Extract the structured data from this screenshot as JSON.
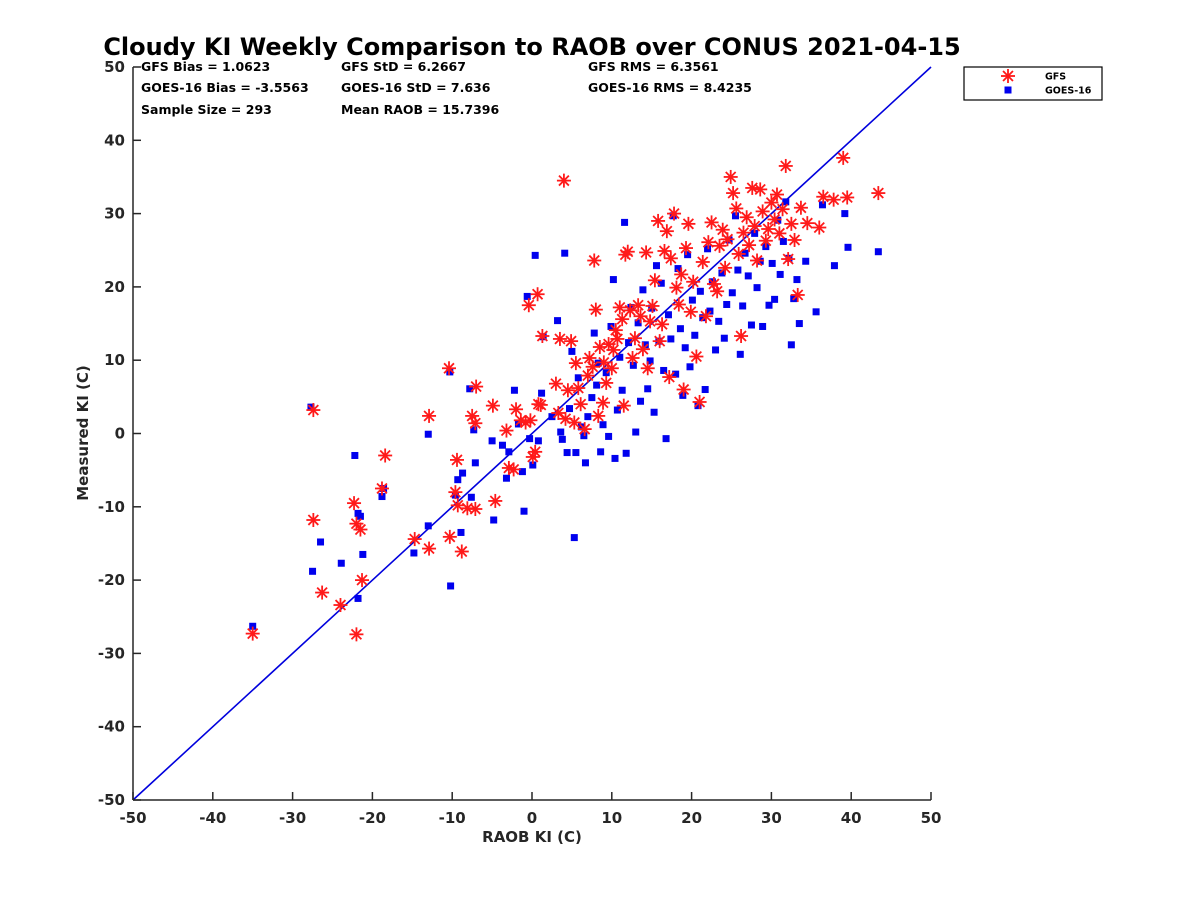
{
  "chart_data": {
    "type": "scatter",
    "title": "Cloudy KI Weekly Comparison to RAOB over CONUS 2021-04-15",
    "xlabel": "RAOB KI (C)",
    "ylabel": "Measured KI (C)",
    "xlim": [
      -50,
      50
    ],
    "ylim": [
      -50,
      50
    ],
    "xticks": [
      -50,
      -40,
      -30,
      -20,
      -10,
      0,
      10,
      20,
      30,
      40,
      50
    ],
    "yticks": [
      -50,
      -40,
      -30,
      -20,
      -10,
      0,
      10,
      20,
      30,
      40,
      50
    ],
    "grid": false,
    "legend_position": "outside-top-right",
    "reference_line": {
      "from": [
        -50,
        -50
      ],
      "to": [
        50,
        50
      ],
      "color": "#0000dd"
    },
    "stats": [
      {
        "key": "gfs-bias",
        "text": "GFS Bias = 1.0623"
      },
      {
        "key": "gfs-std",
        "text": "GFS StD = 6.2667"
      },
      {
        "key": "gfs-rms",
        "text": "GFS RMS = 6.3561"
      },
      {
        "key": "goes-bias",
        "text": "GOES-16 Bias = -3.5563"
      },
      {
        "key": "goes-std",
        "text": "GOES-16 StD = 7.636"
      },
      {
        "key": "goes-rms",
        "text": "GOES-16 RMS = 8.4235"
      },
      {
        "key": "sample-size",
        "text": "Sample Size = 293"
      },
      {
        "key": "mean-raob",
        "text": "Mean RAOB = 15.7396"
      }
    ],
    "series": [
      {
        "name": "GFS",
        "marker": "asterisk",
        "color": "#ff1a1a",
        "points": [
          [
            -35,
            -27.3
          ],
          [
            -27.4,
            3.2
          ],
          [
            -27.4,
            -11.8
          ],
          [
            -26.3,
            -21.7
          ],
          [
            -24,
            -23.4
          ],
          [
            -22,
            -27.4
          ],
          [
            -22.3,
            -9.5
          ],
          [
            -22,
            -12.3
          ],
          [
            -21.5,
            -13.1
          ],
          [
            -21.3,
            -20
          ],
          [
            -18.8,
            -7.5
          ],
          [
            -18.4,
            -3
          ],
          [
            -14.7,
            -14.4
          ],
          [
            -12.9,
            -15.7
          ],
          [
            -12.9,
            2.4
          ],
          [
            -10.4,
            8.9
          ],
          [
            -10.3,
            -14.1
          ],
          [
            -9.6,
            -8
          ],
          [
            -9.4,
            -3.6
          ],
          [
            -9.3,
            -9.8
          ],
          [
            -8.8,
            -16.1
          ],
          [
            -8.1,
            -10.2
          ],
          [
            -7.5,
            2.4
          ],
          [
            -7.1,
            -10.3
          ],
          [
            -7.1,
            1.4
          ],
          [
            -7,
            6.4
          ],
          [
            -4.9,
            3.8
          ],
          [
            -4.6,
            -9.2
          ],
          [
            -3.2,
            0.4
          ],
          [
            -2.9,
            -4.7
          ],
          [
            -2.3,
            -4.9
          ],
          [
            -2,
            3.3
          ],
          [
            -1.4,
            1.8
          ],
          [
            -0.8,
            1.5
          ],
          [
            -0.4,
            17.5
          ],
          [
            -0.2,
            1.8
          ],
          [
            0.1,
            -3.2
          ],
          [
            0.4,
            -2.5
          ],
          [
            0.7,
            19
          ],
          [
            0.8,
            4
          ],
          [
            1.1,
            3.9
          ],
          [
            1.3,
            13.3
          ],
          [
            3,
            6.8
          ],
          [
            3.3,
            2.8
          ],
          [
            3.5,
            12.9
          ],
          [
            4,
            34.5
          ],
          [
            4.2,
            2
          ],
          [
            4.5,
            5.9
          ],
          [
            4.9,
            12.6
          ],
          [
            5.3,
            1.5
          ],
          [
            5.5,
            9.6
          ],
          [
            5.8,
            6.2
          ],
          [
            6.1,
            4
          ],
          [
            6.6,
            0.6
          ],
          [
            7,
            7.9
          ],
          [
            7.2,
            10.3
          ],
          [
            7.6,
            9.1
          ],
          [
            7.8,
            23.6
          ],
          [
            8,
            16.9
          ],
          [
            8.3,
            2.4
          ],
          [
            8.5,
            11.8
          ],
          [
            8.9,
            4.2
          ],
          [
            9,
            9.7
          ],
          [
            9.3,
            6.9
          ],
          [
            9.6,
            12.2
          ],
          [
            10,
            8.9
          ],
          [
            10.2,
            11.4
          ],
          [
            10.5,
            14.1
          ],
          [
            10.7,
            12.9
          ],
          [
            11,
            17.2
          ],
          [
            11.3,
            15.6
          ],
          [
            11.5,
            3.8
          ],
          [
            11.7,
            24.4
          ],
          [
            12,
            24.8
          ],
          [
            12.3,
            16.8
          ],
          [
            12.6,
            10.3
          ],
          [
            12.9,
            13
          ],
          [
            13.3,
            17.5
          ],
          [
            13.6,
            16
          ],
          [
            13.9,
            11.5
          ],
          [
            14.3,
            24.7
          ],
          [
            14.5,
            8.9
          ],
          [
            14.8,
            15.3
          ],
          [
            15.1,
            17.4
          ],
          [
            15.4,
            20.9
          ],
          [
            15.8,
            29
          ],
          [
            16,
            12.6
          ],
          [
            16.3,
            14.9
          ],
          [
            16.6,
            24.9
          ],
          [
            16.9,
            27.6
          ],
          [
            17.2,
            7.7
          ],
          [
            17.4,
            23.9
          ],
          [
            17.8,
            30
          ],
          [
            18.1,
            19.9
          ],
          [
            18.4,
            17.6
          ],
          [
            18.7,
            21.7
          ],
          [
            19,
            6
          ],
          [
            19.3,
            25.3
          ],
          [
            19.6,
            28.6
          ],
          [
            19.9,
            16.6
          ],
          [
            20.2,
            20.7
          ],
          [
            20.6,
            10.5
          ],
          [
            21,
            4.3
          ],
          [
            21.4,
            23.4
          ],
          [
            21.8,
            16
          ],
          [
            22.1,
            26.1
          ],
          [
            22.5,
            28.8
          ],
          [
            22.8,
            20.4
          ],
          [
            23.2,
            19.4
          ],
          [
            23.5,
            25.6
          ],
          [
            23.9,
            27.8
          ],
          [
            24.2,
            22.6
          ],
          [
            24.5,
            26.5
          ],
          [
            24.9,
            35
          ],
          [
            25.2,
            32.8
          ],
          [
            25.6,
            30.7
          ],
          [
            25.9,
            24.5
          ],
          [
            26.2,
            13.3
          ],
          [
            26.5,
            27.4
          ],
          [
            26.9,
            29.5
          ],
          [
            27.2,
            25.7
          ],
          [
            27.6,
            33.5
          ],
          [
            27.9,
            28.3
          ],
          [
            28.2,
            23.6
          ],
          [
            28.6,
            33.3
          ],
          [
            28.9,
            30.3
          ],
          [
            29.3,
            26.3
          ],
          [
            29.6,
            27.9
          ],
          [
            30,
            31.5
          ],
          [
            30.4,
            29.2
          ],
          [
            30.7,
            32.6
          ],
          [
            31,
            27.3
          ],
          [
            31.4,
            30.6
          ],
          [
            31.8,
            36.5
          ],
          [
            32.1,
            23.8
          ],
          [
            32.5,
            28.6
          ],
          [
            32.9,
            26.4
          ],
          [
            33.3,
            18.9
          ],
          [
            33.7,
            30.8
          ],
          [
            34.5,
            28.7
          ],
          [
            36,
            28.1
          ],
          [
            36.5,
            32.3
          ],
          [
            37.8,
            31.9
          ],
          [
            39,
            37.6
          ],
          [
            39.5,
            32.2
          ],
          [
            43.4,
            32.8
          ]
        ]
      },
      {
        "name": "GOES-16",
        "marker": "square",
        "color": "#0000ee",
        "points": [
          [
            -35,
            -26.3
          ],
          [
            -27.7,
            3.6
          ],
          [
            -27.5,
            -18.8
          ],
          [
            -26.5,
            -14.8
          ],
          [
            -23.9,
            -17.7
          ],
          [
            -22.2,
            -3
          ],
          [
            -21.8,
            -22.5
          ],
          [
            -21.8,
            -10.9
          ],
          [
            -21.2,
            -16.5
          ],
          [
            -21.5,
            -11.3
          ],
          [
            -18.8,
            -8.6
          ],
          [
            -18.6,
            -7.5
          ],
          [
            -14.8,
            -16.3
          ],
          [
            -13,
            -12.6
          ],
          [
            -13,
            -0.1
          ],
          [
            -10.3,
            8.4
          ],
          [
            -10.2,
            -20.8
          ],
          [
            -9.6,
            -8.4
          ],
          [
            -9.3,
            -6.3
          ],
          [
            -8.9,
            -13.5
          ],
          [
            -8.7,
            -5.4
          ],
          [
            -7.8,
            6.1
          ],
          [
            -7.6,
            -8.7
          ],
          [
            -7.3,
            0.5
          ],
          [
            -7.1,
            -4
          ],
          [
            -5,
            -1
          ],
          [
            -4.8,
            -11.8
          ],
          [
            -3.7,
            -1.6
          ],
          [
            -3.2,
            -6.1
          ],
          [
            -2.9,
            -2.5
          ],
          [
            -2.2,
            5.9
          ],
          [
            -1.7,
            1.3
          ],
          [
            -1.2,
            -5.2
          ],
          [
            -1,
            -10.6
          ],
          [
            -0.6,
            18.7
          ],
          [
            -0.3,
            -0.7
          ],
          [
            0.1,
            -4.3
          ],
          [
            0.4,
            24.3
          ],
          [
            0.8,
            -1
          ],
          [
            1.2,
            5.5
          ],
          [
            1.4,
            13.2
          ],
          [
            2.5,
            2.3
          ],
          [
            3.2,
            15.4
          ],
          [
            3.6,
            0.2
          ],
          [
            3.8,
            -0.8
          ],
          [
            4.1,
            24.6
          ],
          [
            4.4,
            -2.6
          ],
          [
            4.7,
            3.4
          ],
          [
            5,
            11.2
          ],
          [
            5.3,
            -14.2
          ],
          [
            5.5,
            -2.6
          ],
          [
            5.8,
            7.6
          ],
          [
            6.2,
            0.9
          ],
          [
            6.5,
            -0.3
          ],
          [
            6.7,
            -4
          ],
          [
            7,
            2.3
          ],
          [
            7.5,
            4.9
          ],
          [
            7.8,
            13.7
          ],
          [
            8.1,
            6.6
          ],
          [
            8.3,
            9.6
          ],
          [
            8.6,
            -2.5
          ],
          [
            8.9,
            1.2
          ],
          [
            9.3,
            8.3
          ],
          [
            9.6,
            -0.4
          ],
          [
            9.9,
            14.6
          ],
          [
            10.2,
            21
          ],
          [
            10.4,
            -3.4
          ],
          [
            10.7,
            3.2
          ],
          [
            11,
            10.4
          ],
          [
            11.3,
            5.9
          ],
          [
            11.6,
            28.8
          ],
          [
            11.8,
            -2.7
          ],
          [
            12.1,
            12.4
          ],
          [
            12.4,
            17.2
          ],
          [
            12.7,
            9.3
          ],
          [
            13,
            0.2
          ],
          [
            13.3,
            15.1
          ],
          [
            13.6,
            4.4
          ],
          [
            13.9,
            19.6
          ],
          [
            14.2,
            12.1
          ],
          [
            14.5,
            6.1
          ],
          [
            14.8,
            9.9
          ],
          [
            15,
            17.1
          ],
          [
            15.3,
            2.9
          ],
          [
            15.6,
            22.9
          ],
          [
            15.9,
            12.6
          ],
          [
            16.2,
            20.5
          ],
          [
            16.5,
            8.6
          ],
          [
            16.8,
            -0.7
          ],
          [
            17.1,
            16.2
          ],
          [
            17.4,
            12.9
          ],
          [
            17.7,
            29.7
          ],
          [
            18,
            8.1
          ],
          [
            18.3,
            22.5
          ],
          [
            18.6,
            14.3
          ],
          [
            18.9,
            5.2
          ],
          [
            19.2,
            11.7
          ],
          [
            19.5,
            24.4
          ],
          [
            19.8,
            9.1
          ],
          [
            20.1,
            18.2
          ],
          [
            20.4,
            13.4
          ],
          [
            20.8,
            3.8
          ],
          [
            21.1,
            19.4
          ],
          [
            21.4,
            15.8
          ],
          [
            21.7,
            6
          ],
          [
            22,
            25.2
          ],
          [
            22.3,
            16.7
          ],
          [
            22.6,
            20.7
          ],
          [
            23,
            11.4
          ],
          [
            23.4,
            15.3
          ],
          [
            23.8,
            21.9
          ],
          [
            24.1,
            13
          ],
          [
            24.4,
            17.6
          ],
          [
            24.7,
            26.4
          ],
          [
            25.1,
            19.2
          ],
          [
            25.5,
            29.7
          ],
          [
            25.8,
            22.3
          ],
          [
            26.1,
            10.8
          ],
          [
            26.4,
            17.4
          ],
          [
            26.7,
            24.6
          ],
          [
            27.1,
            21.5
          ],
          [
            27.5,
            14.8
          ],
          [
            27.9,
            27.3
          ],
          [
            28.2,
            19.9
          ],
          [
            28.6,
            23.5
          ],
          [
            28.9,
            14.6
          ],
          [
            29.3,
            25.5
          ],
          [
            29.7,
            17.5
          ],
          [
            30.1,
            23.2
          ],
          [
            30.4,
            18.3
          ],
          [
            30.8,
            29.1
          ],
          [
            31.1,
            21.7
          ],
          [
            31.5,
            26.2
          ],
          [
            31.8,
            31.6
          ],
          [
            32.2,
            23.9
          ],
          [
            32.5,
            12.1
          ],
          [
            32.8,
            18.4
          ],
          [
            33.2,
            21
          ],
          [
            33.5,
            15
          ],
          [
            34.3,
            23.5
          ],
          [
            35.6,
            16.6
          ],
          [
            36.4,
            31.2
          ],
          [
            37.9,
            22.9
          ],
          [
            39.2,
            30
          ],
          [
            39.6,
            25.4
          ],
          [
            43.4,
            24.8
          ]
        ]
      }
    ]
  }
}
